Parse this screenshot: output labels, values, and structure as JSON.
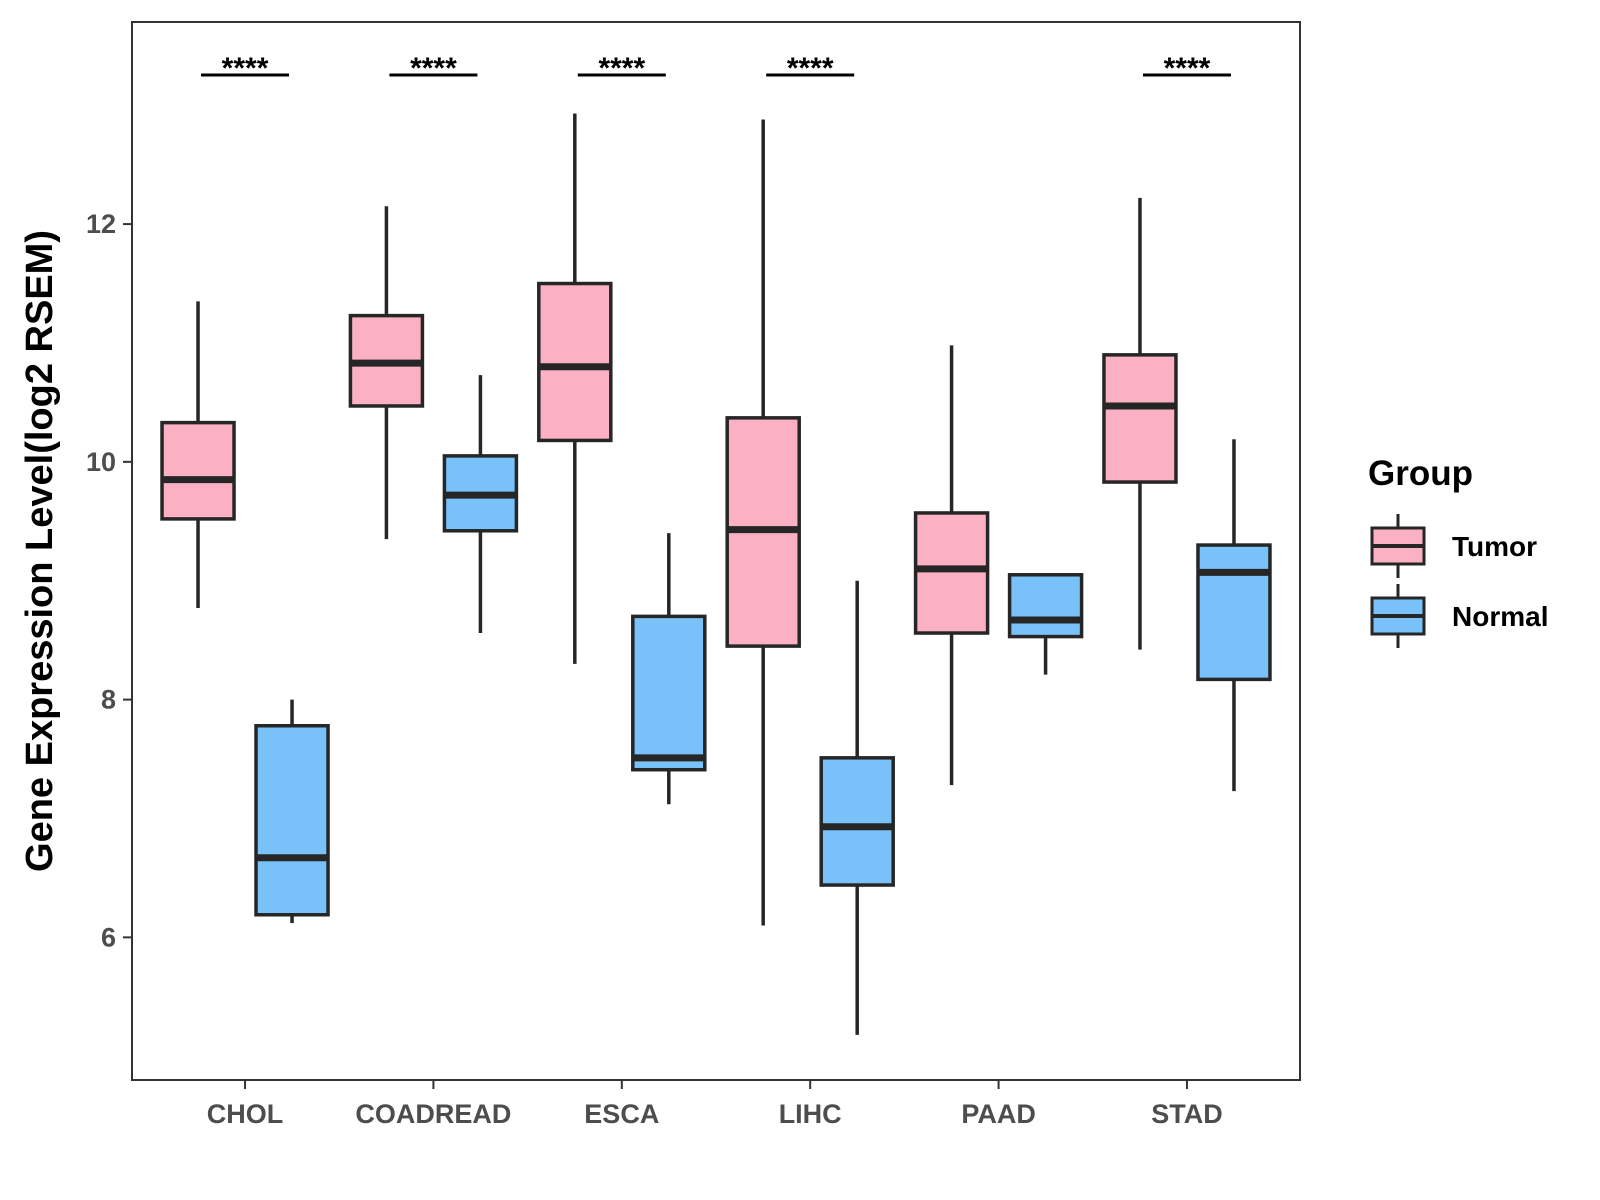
{
  "chart_data": {
    "type": "boxplot",
    "ylabel": "Gene Expression Level(log2 RSEM)",
    "xlabel": "",
    "ylim": [
      4.8,
      13.7
    ],
    "yticks": [
      6,
      8,
      10,
      12
    ],
    "categories": [
      "CHOL",
      "COADREAD",
      "ESCA",
      "LIHC",
      "PAAD",
      "STAD"
    ],
    "legend": {
      "title": "Group",
      "position": "right",
      "entries": [
        {
          "name": "Tumor",
          "color": "#FBB1C3"
        },
        {
          "name": "Normal",
          "color": "#78C2F9"
        }
      ]
    },
    "series": [
      {
        "name": "Tumor",
        "color": "#FBB1C3",
        "boxes": [
          {
            "category": "CHOL",
            "whisker_low": 8.77,
            "q1": 9.52,
            "median": 9.85,
            "q3": 10.33,
            "whisker_high": 11.35
          },
          {
            "category": "COADREAD",
            "whisker_low": 9.35,
            "q1": 10.47,
            "median": 10.83,
            "q3": 11.23,
            "whisker_high": 12.15
          },
          {
            "category": "ESCA",
            "whisker_low": 8.3,
            "q1": 10.18,
            "median": 10.8,
            "q3": 11.5,
            "whisker_high": 12.93
          },
          {
            "category": "LIHC",
            "whisker_low": 6.1,
            "q1": 8.45,
            "median": 9.43,
            "q3": 10.37,
            "whisker_high": 12.88
          },
          {
            "category": "PAAD",
            "whisker_low": 7.28,
            "q1": 8.56,
            "median": 9.1,
            "q3": 9.57,
            "whisker_high": 10.98
          },
          {
            "category": "STAD",
            "whisker_low": 8.42,
            "q1": 9.83,
            "median": 10.47,
            "q3": 10.9,
            "whisker_high": 12.22
          }
        ]
      },
      {
        "name": "Normal",
        "color": "#78C2F9",
        "boxes": [
          {
            "category": "CHOL",
            "whisker_low": 6.12,
            "q1": 6.19,
            "median": 6.67,
            "q3": 7.78,
            "whisker_high": 8.0
          },
          {
            "category": "COADREAD",
            "whisker_low": 8.56,
            "q1": 9.42,
            "median": 9.72,
            "q3": 10.05,
            "whisker_high": 10.73
          },
          {
            "category": "ESCA",
            "whisker_low": 7.12,
            "q1": 7.41,
            "median": 7.51,
            "q3": 8.7,
            "whisker_high": 9.4
          },
          {
            "category": "LIHC",
            "whisker_low": 5.18,
            "q1": 6.44,
            "median": 6.93,
            "q3": 7.51,
            "whisker_high": 9.0
          },
          {
            "category": "PAAD",
            "whisker_low": 8.21,
            "q1": 8.53,
            "median": 8.67,
            "q3": 9.05,
            "whisker_high": 9.05
          },
          {
            "category": "STAD",
            "whisker_low": 7.23,
            "q1": 8.17,
            "median": 9.07,
            "q3": 9.3,
            "whisker_high": 10.19
          }
        ]
      }
    ],
    "significance": [
      {
        "category": "CHOL",
        "label": "****"
      },
      {
        "category": "COADREAD",
        "label": "****"
      },
      {
        "category": "ESCA",
        "label": "****"
      },
      {
        "category": "LIHC",
        "label": "****"
      },
      {
        "category": "PAAD",
        "label": ""
      },
      {
        "category": "STAD",
        "label": "****"
      }
    ]
  }
}
